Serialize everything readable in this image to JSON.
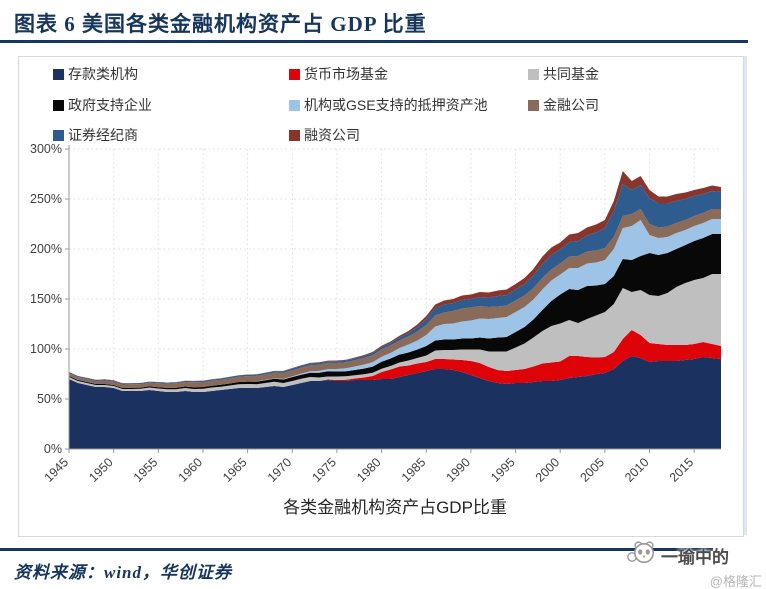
{
  "header": {
    "title": "图表 6  美国各类金融机构资产占 GDP 比重"
  },
  "accent_color": "#17365d",
  "legend": [
    {
      "label": "存款类机构",
      "color": "#1b3160"
    },
    {
      "label": "货币市场基金",
      "color": "#de0209"
    },
    {
      "label": "共同基金",
      "color": "#bfbfbf"
    },
    {
      "label": "政府支持企业",
      "color": "#080808"
    },
    {
      "label": "机构或GSE支持的抵押资产池",
      "color": "#9dc3e6"
    },
    {
      "label": "金融公司",
      "color": "#8a6a59"
    },
    {
      "label": "证券经纪商",
      "color": "#2f5c8f"
    },
    {
      "label": "融资公司",
      "color": "#8a352c"
    }
  ],
  "footer": {
    "source": "资料来源：wind，华创证券",
    "watermark": "一瑜中的",
    "watermark_sub": "@格隆汇"
  },
  "chart_data": {
    "type": "area",
    "stacked": true,
    "title": "各类金融机构资产占GDP比重",
    "ylim": [
      0,
      300
    ],
    "y_step": 50,
    "y_unit": "%",
    "grid": true,
    "legend_position": "top",
    "x": [
      1945,
      1946,
      1947,
      1948,
      1949,
      1950,
      1951,
      1952,
      1953,
      1954,
      1955,
      1956,
      1957,
      1958,
      1959,
      1960,
      1961,
      1962,
      1963,
      1964,
      1965,
      1966,
      1967,
      1968,
      1969,
      1970,
      1971,
      1972,
      1973,
      1974,
      1975,
      1976,
      1977,
      1978,
      1979,
      1980,
      1981,
      1982,
      1983,
      1984,
      1985,
      1986,
      1987,
      1988,
      1989,
      1990,
      1991,
      1992,
      1993,
      1994,
      1995,
      1996,
      1997,
      1998,
      1999,
      2000,
      2001,
      2002,
      2003,
      2004,
      2005,
      2006,
      2007,
      2008,
      2009,
      2010,
      2011,
      2012,
      2013,
      2014,
      2015,
      2016,
      2017,
      2018
    ],
    "x_ticks": [
      1945,
      1950,
      1955,
      1960,
      1965,
      1970,
      1975,
      1980,
      1985,
      1990,
      1995,
      2000,
      2005,
      2010,
      2015
    ],
    "series": [
      {
        "name": "存款类机构",
        "color": "#1b3160",
        "values": [
          70,
          66,
          64,
          62,
          62,
          61,
          58,
          58,
          58,
          59,
          58,
          57,
          57,
          58,
          57,
          57,
          58,
          59,
          60,
          61,
          61,
          61,
          62,
          63,
          62,
          64,
          66,
          68,
          68,
          69,
          68,
          68,
          69,
          69,
          69,
          70,
          70,
          72,
          74,
          76,
          78,
          80,
          80,
          79,
          77,
          74,
          71,
          68,
          66,
          65,
          66,
          66,
          67,
          68,
          68,
          69,
          71,
          72,
          73,
          75,
          76,
          80,
          88,
          93,
          91,
          87,
          88,
          88,
          88,
          89,
          90,
          92,
          91,
          90
        ]
      },
      {
        "name": "货币市场基金",
        "color": "#de0209",
        "values": [
          0,
          0,
          0,
          0,
          0,
          0,
          0,
          0,
          0,
          0,
          0,
          0,
          0,
          0,
          0,
          0,
          0,
          0,
          0,
          0,
          0,
          0,
          0,
          0,
          0,
          0,
          0,
          0,
          0,
          0.5,
          1,
          1.2,
          1.5,
          2.5,
          4,
          7,
          9.5,
          10.5,
          9.5,
          9.5,
          9,
          10,
          10,
          10.5,
          12,
          14,
          15,
          14,
          13,
          13,
          13,
          14,
          15.5,
          17.5,
          18.5,
          18.5,
          22,
          21,
          19,
          16.5,
          16,
          17,
          22,
          26,
          23,
          19,
          17,
          16,
          16,
          15,
          15,
          15,
          14,
          13
        ]
      },
      {
        "name": "共同基金",
        "color": "#bfbfbf",
        "values": [
          2,
          2,
          2,
          2,
          2,
          2,
          2,
          2,
          2.2,
          2.5,
          2.5,
          2.7,
          2.7,
          3,
          3,
          3.2,
          3.5,
          3.3,
          3.5,
          3.8,
          4,
          3.8,
          4,
          4.2,
          4,
          4,
          4.2,
          4,
          3.5,
          3,
          3.5,
          3.5,
          3.3,
          3.2,
          3.2,
          3.3,
          3.5,
          4,
          5,
          5.5,
          6.5,
          8.5,
          9,
          9.5,
          10.5,
          11.5,
          13.5,
          15.5,
          18.5,
          19.5,
          22.5,
          25.5,
          29,
          32.5,
          36.5,
          38,
          36,
          33,
          38,
          42,
          45,
          48,
          51,
          38,
          45,
          48,
          48,
          52,
          58,
          62,
          64,
          64,
          70,
          72
        ]
      },
      {
        "name": "政府支持企业",
        "color": "#080808",
        "values": [
          1,
          1,
          1,
          1,
          1,
          1,
          1,
          1.2,
          1.2,
          1.2,
          1.3,
          1.4,
          1.5,
          1.5,
          1.7,
          1.8,
          1.8,
          2,
          2,
          2.2,
          2.4,
          2.6,
          2.8,
          3,
          3.5,
          4,
          4,
          4.2,
          4.8,
          5.2,
          5,
          5,
          5.2,
          5.7,
          6.2,
          7,
          7.5,
          8,
          8,
          8.5,
          9.5,
          10,
          10.5,
          10.5,
          11,
          11,
          12,
          13,
          14,
          14.5,
          15.5,
          16.5,
          18,
          21,
          25,
          29,
          31,
          33,
          33,
          30,
          28,
          28,
          29,
          32,
          34,
          42,
          41,
          40,
          38,
          38,
          39,
          40,
          40,
          40
        ]
      },
      {
        "name": "机构或GSE支持的抵押资产池",
        "color": "#9dc3e6",
        "values": [
          0,
          0,
          0,
          0,
          0,
          0,
          0,
          0,
          0,
          0,
          0,
          0,
          0,
          0,
          0,
          0,
          0,
          0,
          0,
          0,
          0,
          0.2,
          0.3,
          0.4,
          0.6,
          0.8,
          1.2,
          1.5,
          1.8,
          2.2,
          2.5,
          3,
          3.5,
          4,
          4.5,
          5,
          5.5,
          6.5,
          8,
          9,
          11,
          14,
          15.5,
          16,
          17,
          18,
          19,
          19.5,
          19.5,
          20,
          20,
          20,
          20,
          20.5,
          20.5,
          20,
          21,
          22,
          22.5,
          23,
          24,
          27,
          31,
          34,
          36,
          18,
          17,
          16,
          16,
          15,
          15,
          15,
          15,
          15
        ]
      },
      {
        "name": "金融公司",
        "color": "#8a6a59",
        "values": [
          3,
          3,
          3,
          3,
          3.5,
          3.5,
          3.5,
          3.5,
          3.5,
          3.5,
          4,
          4.2,
          4.5,
          4.5,
          5,
          5,
          5,
          5,
          5.2,
          5.3,
          5.5,
          5.5,
          5.5,
          5.7,
          6,
          6,
          6,
          6,
          6.2,
          6.2,
          6,
          6,
          6.2,
          6.5,
          7,
          7.5,
          7.5,
          7.5,
          8,
          9,
          10,
          11,
          11.5,
          12.5,
          13,
          13,
          12.5,
          12,
          11.5,
          11.5,
          11.5,
          11.5,
          11.5,
          11.5,
          11,
          11,
          11.5,
          12,
          12,
          12,
          12,
          12,
          12,
          12,
          11,
          11,
          10.5,
          10.5,
          10,
          10,
          10,
          10,
          10,
          10
        ]
      },
      {
        "name": "证券经纪商",
        "color": "#2f5c8f",
        "values": [
          1,
          1,
          1,
          1,
          1,
          1,
          1,
          1,
          1,
          1,
          1,
          1,
          1,
          1,
          1.2,
          1.2,
          1.2,
          1.2,
          1.3,
          1.3,
          1.4,
          1.4,
          1.5,
          1.5,
          1.6,
          1.7,
          1.8,
          1.9,
          1.8,
          1.7,
          1.8,
          1.9,
          2,
          2.1,
          2.2,
          2.3,
          2.5,
          3,
          3.5,
          4.5,
          6,
          7.5,
          8,
          8,
          8.5,
          8.5,
          9,
          9.5,
          10.5,
          10.5,
          11,
          11.5,
          12.5,
          14,
          14.5,
          14,
          14.5,
          15,
          16,
          18,
          20,
          26,
          32,
          24,
          24,
          26,
          24,
          23,
          22,
          21,
          20,
          19,
          18,
          17
        ]
      },
      {
        "name": "融资公司",
        "color": "#8a352c",
        "values": [
          0,
          0,
          0.2,
          0.2,
          0.2,
          0.2,
          0.2,
          0.2,
          0.2,
          0.2,
          0.2,
          0.2,
          0.2,
          0.2,
          0.2,
          0.2,
          0.2,
          0.2,
          0.2,
          0.2,
          0.2,
          0.2,
          0.3,
          0.3,
          0.4,
          0.5,
          0.5,
          0.5,
          0.6,
          0.6,
          0.7,
          0.7,
          0.8,
          0.9,
          1,
          1.2,
          1.5,
          1.8,
          2,
          2.5,
          3,
          3.5,
          4,
          4,
          4.5,
          4.5,
          5,
          5,
          5.5,
          5.5,
          5.5,
          6,
          6.5,
          7.5,
          7.5,
          7,
          7.5,
          8,
          8,
          8,
          8,
          10,
          13,
          9,
          9,
          8,
          7,
          7,
          7,
          6.5,
          6,
          6,
          5.5,
          5
        ]
      }
    ]
  }
}
